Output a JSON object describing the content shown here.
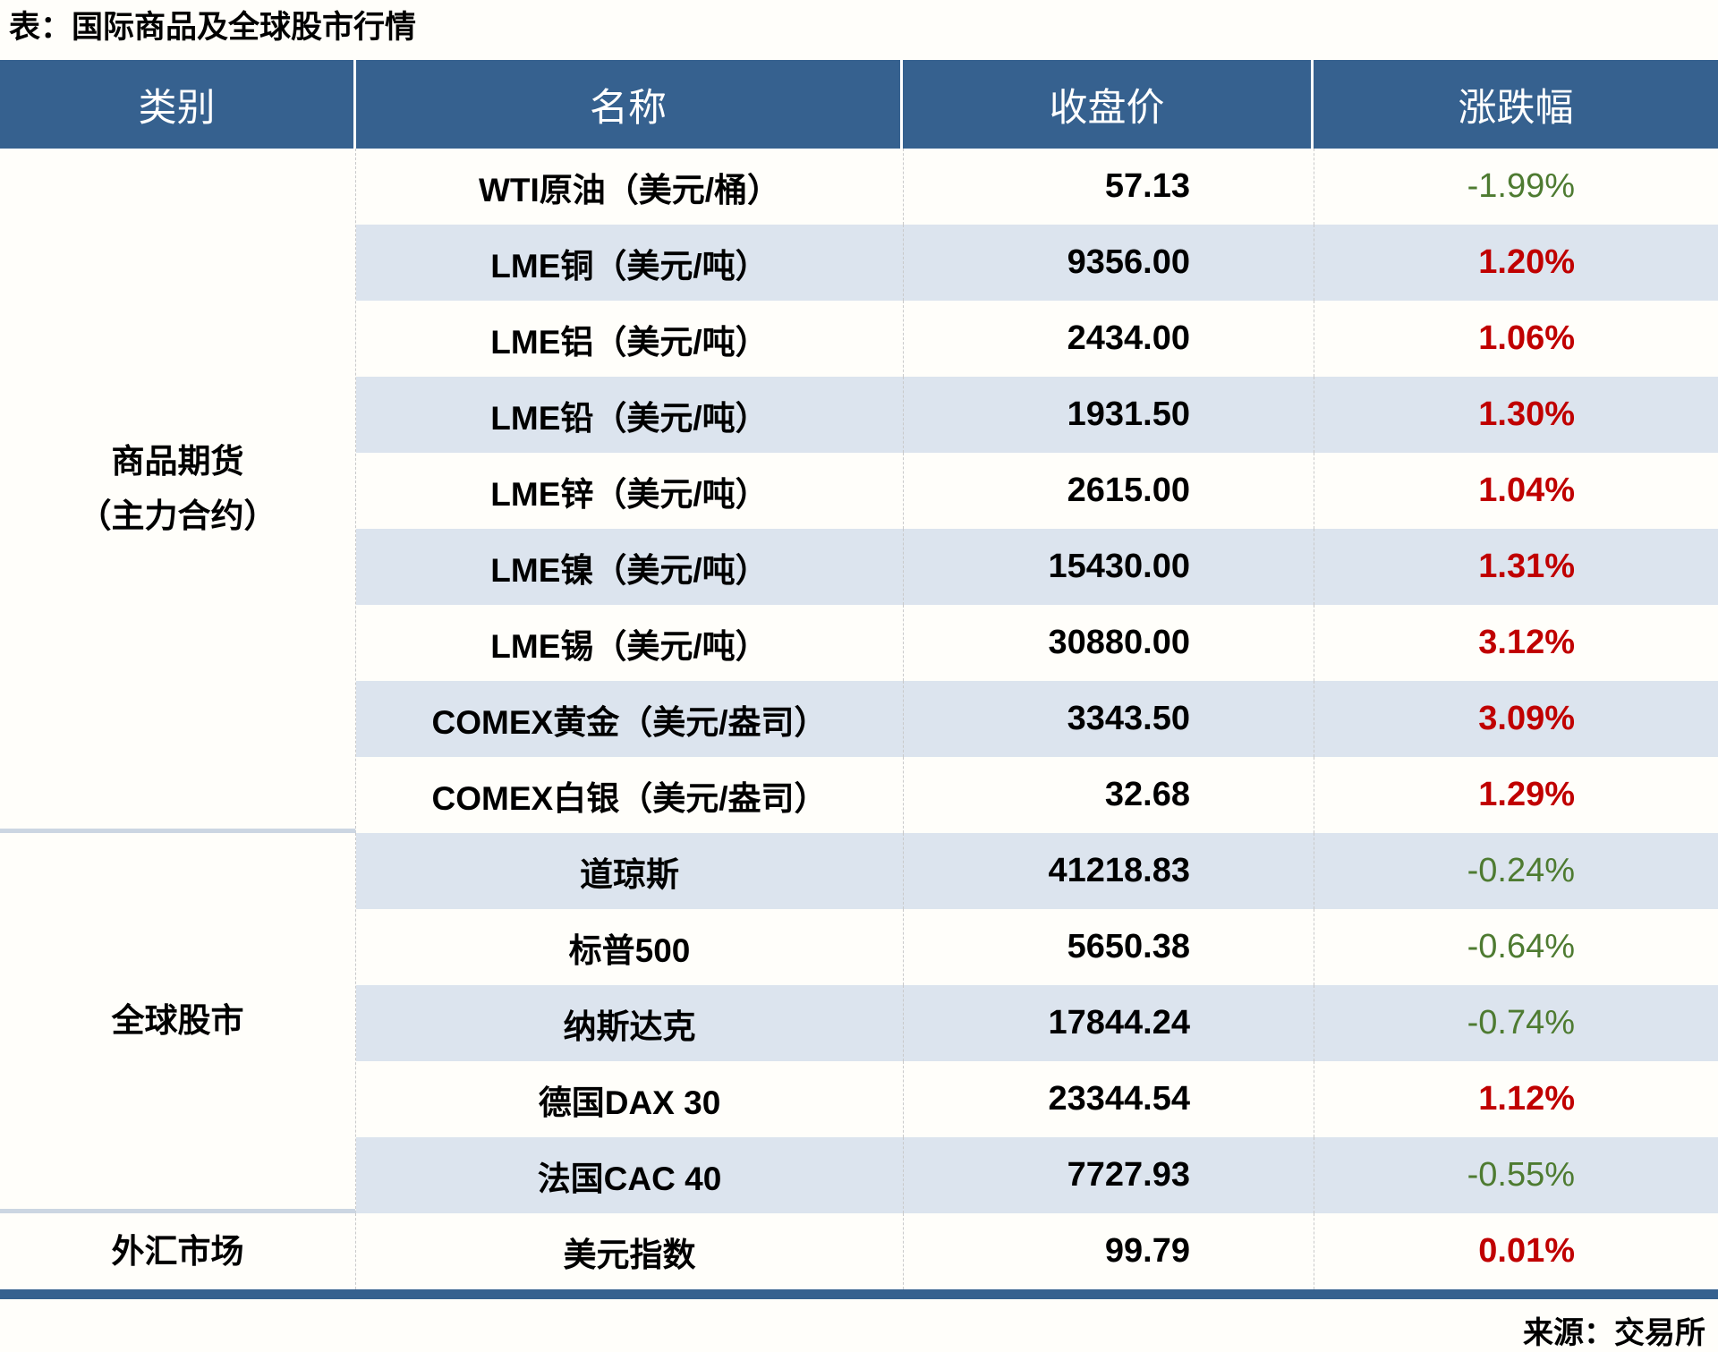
{
  "title": "表：国际商品及全球股市行情",
  "header": {
    "category": "类别",
    "name": "名称",
    "close": "收盘价",
    "change": "涨跌幅"
  },
  "groups": [
    {
      "label": "商品期货\n（主力合约）",
      "rows": [
        {
          "name": "WTI原油（美元/桶）",
          "close": "57.13",
          "change": "-1.99%",
          "direction": "down"
        },
        {
          "name": "LME铜（美元/吨）",
          "close": "9356.00",
          "change": "1.20%",
          "direction": "up"
        },
        {
          "name": "LME铝（美元/吨）",
          "close": "2434.00",
          "change": "1.06%",
          "direction": "up"
        },
        {
          "name": "LME铅（美元/吨）",
          "close": "1931.50",
          "change": "1.30%",
          "direction": "up"
        },
        {
          "name": "LME锌（美元/吨）",
          "close": "2615.00",
          "change": "1.04%",
          "direction": "up"
        },
        {
          "name": "LME镍（美元/吨）",
          "close": "15430.00",
          "change": "1.31%",
          "direction": "up"
        },
        {
          "name": "LME锡（美元/吨）",
          "close": "30880.00",
          "change": "3.12%",
          "direction": "up"
        },
        {
          "name": "COMEX黄金（美元/盎司）",
          "close": "3343.50",
          "change": "3.09%",
          "direction": "up"
        },
        {
          "name": "COMEX白银（美元/盎司）",
          "close": "32.68",
          "change": "1.29%",
          "direction": "up"
        }
      ]
    },
    {
      "label": "全球股市",
      "rows": [
        {
          "name": "道琼斯",
          "close": "41218.83",
          "change": "-0.24%",
          "direction": "down"
        },
        {
          "name": "标普500",
          "close": "5650.38",
          "change": "-0.64%",
          "direction": "down"
        },
        {
          "name": "纳斯达克",
          "close": "17844.24",
          "change": "-0.74%",
          "direction": "down"
        },
        {
          "name": "德国DAX 30",
          "close": "23344.54",
          "change": "1.12%",
          "direction": "up"
        },
        {
          "name": "法国CAC 40",
          "close": "7727.93",
          "change": "-0.55%",
          "direction": "down"
        }
      ]
    },
    {
      "label": "外汇市场",
      "rows": [
        {
          "name": "美元指数",
          "close": "99.79",
          "change": "0.01%",
          "direction": "up"
        }
      ]
    }
  ],
  "footer": {
    "source": "来源：交易所"
  },
  "colors": {
    "header_bg": "#36618f",
    "stripe": "#dce4ee",
    "up_red": "#c00000",
    "down_green": "#4e7b31"
  },
  "chart_data": {
    "type": "table",
    "title": "表：国际商品及全球股市行情",
    "columns": [
      "类别",
      "名称",
      "收盘价",
      "涨跌幅"
    ],
    "rows": [
      [
        "商品期货（主力合约）",
        "WTI原油（美元/桶）",
        57.13,
        "-1.99%"
      ],
      [
        "商品期货（主力合约）",
        "LME铜（美元/吨）",
        9356.0,
        "1.20%"
      ],
      [
        "商品期货（主力合约）",
        "LME铝（美元/吨）",
        2434.0,
        "1.06%"
      ],
      [
        "商品期货（主力合约）",
        "LME铅（美元/吨）",
        1931.5,
        "1.30%"
      ],
      [
        "商品期货（主力合约）",
        "LME锌（美元/吨）",
        2615.0,
        "1.04%"
      ],
      [
        "商品期货（主力合约）",
        "LME镍（美元/吨）",
        15430.0,
        "1.31%"
      ],
      [
        "商品期货（主力合约）",
        "LME锡（美元/吨）",
        30880.0,
        "3.12%"
      ],
      [
        "商品期货（主力合约）",
        "COMEX黄金（美元/盎司）",
        3343.5,
        "3.09%"
      ],
      [
        "商品期货（主力合约）",
        "COMEX白银（美元/盎司）",
        32.68,
        "1.29%"
      ],
      [
        "全球股市",
        "道琼斯",
        41218.83,
        "-0.24%"
      ],
      [
        "全球股市",
        "标普500",
        5650.38,
        "-0.64%"
      ],
      [
        "全球股市",
        "纳斯达克",
        17844.24,
        "-0.74%"
      ],
      [
        "全球股市",
        "德国DAX 30",
        23344.54,
        "1.12%"
      ],
      [
        "全球股市",
        "法国CAC 40",
        7727.93,
        "-0.55%"
      ],
      [
        "外汇市场",
        "美元指数",
        99.79,
        "0.01%"
      ]
    ],
    "notes": "positive changes shown bold red (#c00000), negative changes shown green (#4e7b31); source note bottom-right"
  }
}
